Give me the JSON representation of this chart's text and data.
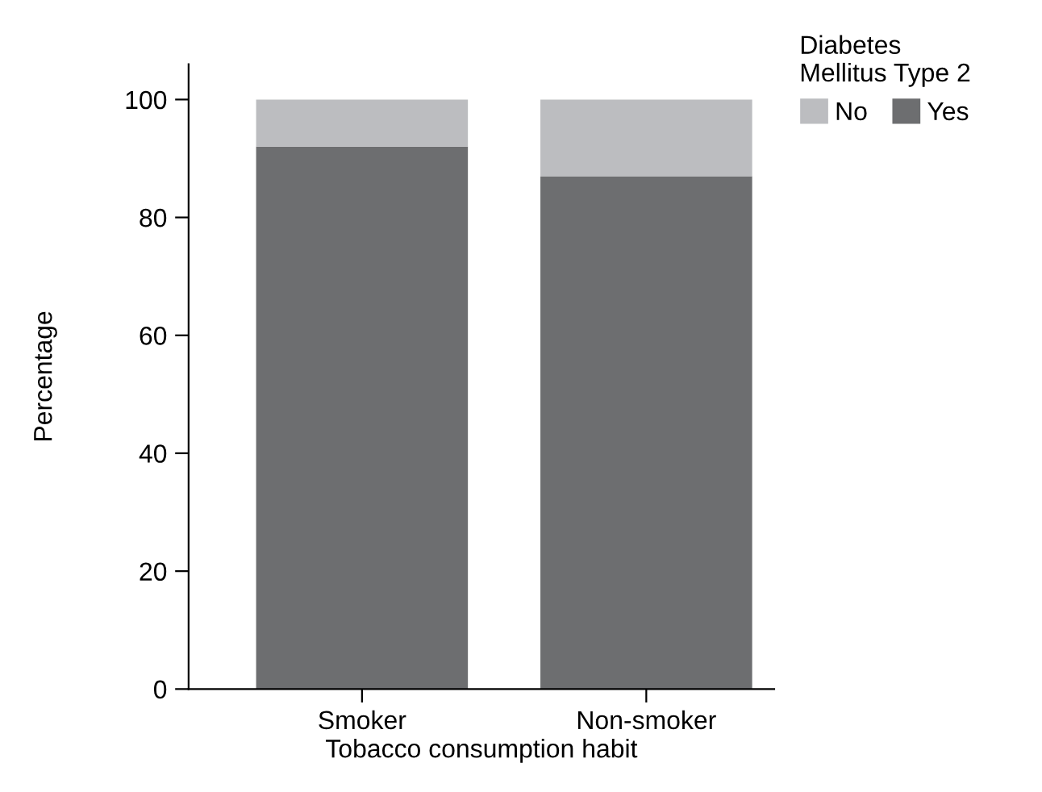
{
  "chart_data": {
    "type": "bar",
    "stacked": true,
    "xlabel": "Tobacco consumption habit",
    "ylabel": "Percentage",
    "legend_title": "Diabetes\nMellitus Type 2",
    "categories": [
      "Smoker",
      "Non-smoker"
    ],
    "series": [
      {
        "name": "Yes",
        "color": "#6d6e70",
        "values": [
          92,
          87
        ]
      },
      {
        "name": "No",
        "color": "#bcbdc0",
        "values": [
          8,
          13
        ]
      }
    ],
    "ylim": [
      0,
      106
    ],
    "yticks": [
      0,
      20,
      40,
      60,
      80,
      100
    ],
    "grid": false,
    "legend": "top right"
  }
}
